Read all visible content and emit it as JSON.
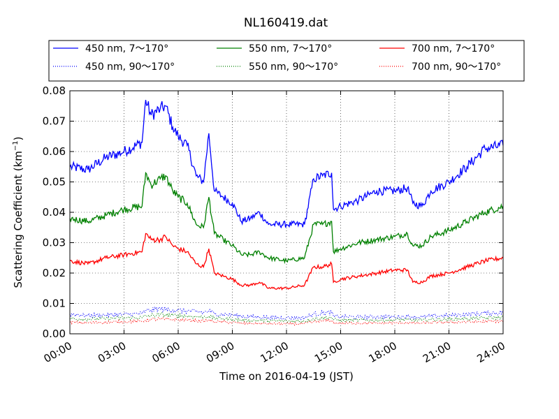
{
  "chart_data": {
    "type": "line",
    "title": "NL160419.dat",
    "xlabel": "Time on 2016-04-19 (JST)",
    "ylabel": "Scattering Coefficient (km",
    "ylabel_sup": "−1",
    "ylabel_end": ")",
    "xlim": [
      0,
      24
    ],
    "ylim": [
      0,
      0.08
    ],
    "grid": true,
    "legend_position": "top",
    "x_ticks": [
      0,
      3,
      6,
      9,
      12,
      15,
      18,
      21,
      24
    ],
    "x_tick_labels": [
      "00:00",
      "03:00",
      "06:00",
      "09:00",
      "12:00",
      "15:00",
      "18:00",
      "21:00",
      "24:00"
    ],
    "y_ticks": [
      0,
      0.01,
      0.02,
      0.03,
      0.04,
      0.05,
      0.06,
      0.07,
      0.08
    ],
    "y_tick_labels": [
      "0.00",
      "0.01",
      "0.02",
      "0.03",
      "0.04",
      "0.05",
      "0.06",
      "0.07",
      "0.08"
    ],
    "x": [
      0,
      1,
      2,
      3,
      4,
      4.2,
      4.5,
      5,
      5.3,
      5.7,
      6,
      6.5,
      7,
      7.4,
      7.7,
      8,
      8.5,
      9,
      9.5,
      10,
      10.5,
      11,
      12,
      13,
      13.5,
      14,
      14.5,
      14.6,
      15,
      16,
      17,
      18,
      18.7,
      19,
      19.5,
      20,
      21,
      22,
      23,
      24
    ],
    "series": [
      {
        "name": "450 nm, 7～170°",
        "color": "#0000ff",
        "style": "solid",
        "values": [
          0.055,
          0.054,
          0.058,
          0.06,
          0.063,
          0.077,
          0.072,
          0.074,
          0.075,
          0.068,
          0.065,
          0.062,
          0.052,
          0.05,
          0.066,
          0.047,
          0.045,
          0.043,
          0.037,
          0.038,
          0.04,
          0.036,
          0.036,
          0.036,
          0.051,
          0.052,
          0.053,
          0.041,
          0.042,
          0.044,
          0.047,
          0.047,
          0.048,
          0.043,
          0.042,
          0.047,
          0.05,
          0.055,
          0.061,
          0.062
        ]
      },
      {
        "name": "550 nm, 7～170°",
        "color": "#008000",
        "style": "solid",
        "values": [
          0.038,
          0.037,
          0.039,
          0.041,
          0.042,
          0.053,
          0.049,
          0.051,
          0.052,
          0.047,
          0.045,
          0.043,
          0.036,
          0.035,
          0.045,
          0.033,
          0.031,
          0.029,
          0.026,
          0.026,
          0.027,
          0.025,
          0.024,
          0.025,
          0.036,
          0.036,
          0.037,
          0.027,
          0.028,
          0.03,
          0.031,
          0.032,
          0.033,
          0.029,
          0.029,
          0.032,
          0.034,
          0.037,
          0.04,
          0.042
        ]
      },
      {
        "name": "700 nm, 7～170°",
        "color": "#ff0000",
        "style": "solid",
        "values": [
          0.024,
          0.023,
          0.025,
          0.026,
          0.027,
          0.033,
          0.031,
          0.031,
          0.032,
          0.029,
          0.028,
          0.027,
          0.023,
          0.022,
          0.028,
          0.02,
          0.019,
          0.018,
          0.016,
          0.016,
          0.017,
          0.015,
          0.015,
          0.016,
          0.022,
          0.022,
          0.023,
          0.017,
          0.018,
          0.019,
          0.02,
          0.021,
          0.021,
          0.017,
          0.017,
          0.019,
          0.02,
          0.022,
          0.024,
          0.025
        ]
      },
      {
        "name": "450 nm, 90～170°",
        "color": "#0000ff",
        "style": "dotted",
        "values": [
          0.0065,
          0.006,
          0.0062,
          0.0064,
          0.0066,
          0.0075,
          0.0078,
          0.0082,
          0.008,
          0.0078,
          0.0077,
          0.0075,
          0.0072,
          0.007,
          0.0075,
          0.0066,
          0.0064,
          0.0062,
          0.0058,
          0.0056,
          0.0055,
          0.0054,
          0.0053,
          0.0053,
          0.0065,
          0.0068,
          0.007,
          0.0058,
          0.0056,
          0.0055,
          0.0056,
          0.0056,
          0.0057,
          0.0055,
          0.0055,
          0.0058,
          0.006,
          0.0064,
          0.0068,
          0.007
        ]
      },
      {
        "name": "550 nm, 90～170°",
        "color": "#008000",
        "style": "dotted",
        "values": [
          0.005,
          0.0048,
          0.005,
          0.0052,
          0.0053,
          0.0058,
          0.006,
          0.0063,
          0.0062,
          0.006,
          0.006,
          0.0058,
          0.0056,
          0.0055,
          0.0058,
          0.0052,
          0.005,
          0.0048,
          0.0045,
          0.0044,
          0.0044,
          0.0043,
          0.0042,
          0.0042,
          0.005,
          0.0052,
          0.0054,
          0.0046,
          0.0045,
          0.0045,
          0.0045,
          0.0046,
          0.0046,
          0.0045,
          0.0045,
          0.0047,
          0.0048,
          0.005,
          0.0052,
          0.0054
        ]
      },
      {
        "name": "700 nm, 90～170°",
        "color": "#ff0000",
        "style": "dotted",
        "values": [
          0.0038,
          0.0036,
          0.0038,
          0.004,
          0.0041,
          0.0045,
          0.0047,
          0.0049,
          0.0048,
          0.0047,
          0.0046,
          0.0045,
          0.0043,
          0.0042,
          0.0045,
          0.004,
          0.0039,
          0.0037,
          0.0035,
          0.0034,
          0.0034,
          0.0033,
          0.0033,
          0.0033,
          0.004,
          0.0042,
          0.0044,
          0.0036,
          0.0035,
          0.0035,
          0.0035,
          0.0036,
          0.0036,
          0.0035,
          0.0035,
          0.0037,
          0.0038,
          0.0039,
          0.0041,
          0.0042
        ]
      }
    ],
    "legend_order": [
      0,
      1,
      2,
      3,
      4,
      5
    ]
  }
}
